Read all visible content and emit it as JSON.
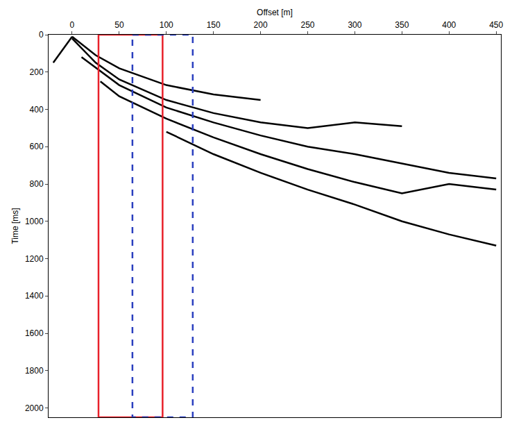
{
  "chart_data": {
    "type": "line",
    "x_label": "Offset [m]",
    "y_label": "Time [ms]",
    "xlim": [
      -25,
      455
    ],
    "ylim": [
      0,
      2050
    ],
    "xticks": [
      0,
      50,
      100,
      150,
      200,
      250,
      300,
      350,
      400,
      450
    ],
    "yticks": [
      0,
      200,
      400,
      600,
      800,
      1000,
      1200,
      1400,
      1600,
      1800,
      2000
    ],
    "grid": false,
    "color": "#000000",
    "series": [
      {
        "x": [
          -20,
          -10,
          0
        ],
        "values": [
          150,
          80,
          10
        ]
      },
      {
        "x": [
          0,
          25,
          50,
          100,
          150,
          200
        ],
        "values": [
          10,
          110,
          180,
          270,
          320,
          350
        ]
      },
      {
        "x": [
          0,
          25,
          50,
          100,
          150,
          200,
          250,
          300,
          350
        ],
        "values": [
          20,
          150,
          240,
          350,
          420,
          470,
          500,
          470,
          490
        ]
      },
      {
        "x": [
          10,
          50,
          100,
          150,
          200,
          250,
          300,
          350,
          400,
          450
        ],
        "values": [
          120,
          270,
          390,
          470,
          540,
          600,
          640,
          690,
          740,
          770
        ]
      },
      {
        "x": [
          30,
          50,
          100,
          150,
          200,
          250,
          300,
          350,
          400,
          450
        ],
        "values": [
          250,
          330,
          450,
          550,
          640,
          720,
          790,
          850,
          800,
          830
        ]
      },
      {
        "x": [
          100,
          150,
          200,
          250,
          300,
          350,
          400,
          450
        ],
        "values": [
          520,
          640,
          740,
          830,
          910,
          1000,
          1070,
          1130
        ]
      }
    ],
    "boxes": [
      {
        "x": [
          28,
          96
        ],
        "y": [
          0,
          2050
        ],
        "color": "#e8202a",
        "line_style": "solid"
      },
      {
        "x": [
          64,
          128
        ],
        "y": [
          0,
          2050
        ],
        "color": "#2a3fbf",
        "line_style": "dash"
      }
    ]
  }
}
